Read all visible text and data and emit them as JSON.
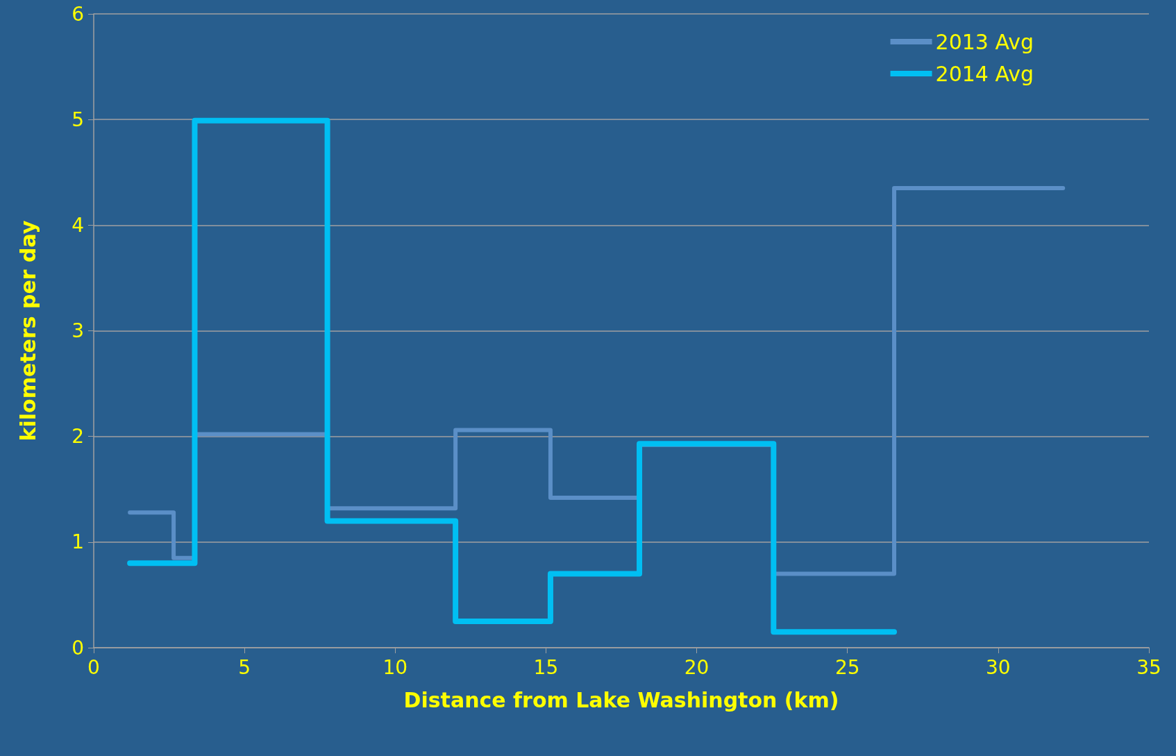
{
  "chart_data": {
    "type": "step",
    "xlabel": "Distance from Lake Washington (km)",
    "ylabel": "kilometers per day",
    "series": [
      {
        "name": "2013 Avg",
        "color": "#5b8fc7",
        "x": [
          1.2,
          2.65,
          3.35,
          7.75,
          12,
          15.15,
          18.1,
          22.55,
          26.55,
          32.15
        ],
        "values": [
          1.28,
          0.85,
          2.02,
          1.32,
          2.06,
          1.42,
          1.92,
          0.7,
          4.35,
          4.35
        ]
      },
      {
        "name": "2014 Avg",
        "color": "#00bff3",
        "x": [
          1.2,
          3.35,
          7.75,
          12,
          15.15,
          18.1,
          22.55,
          26.55
        ],
        "values": [
          0.8,
          4.99,
          1.2,
          0.25,
          0.7,
          1.93,
          0.15,
          0.15
        ]
      }
    ],
    "xlim": [
      0,
      35
    ],
    "xticks": [
      0,
      5,
      10,
      15,
      20,
      25,
      30,
      35
    ],
    "ylim": [
      0,
      6
    ],
    "yticks": [
      0,
      1,
      2,
      3,
      4,
      5,
      6
    ],
    "grid": "y",
    "legend": "top right",
    "marker": "none",
    "line_style": "solid"
  }
}
